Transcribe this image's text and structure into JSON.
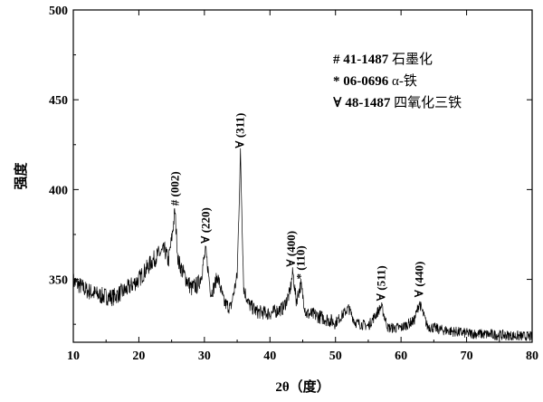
{
  "chart_data": {
    "type": "line",
    "xlabel": "2θ（度）",
    "ylabel": "强度",
    "xlim": [
      10,
      80
    ],
    "ylim": [
      315,
      500
    ],
    "xticks": [
      10,
      20,
      30,
      40,
      50,
      60,
      70,
      80
    ],
    "yticks": [
      350,
      400,
      450,
      500
    ],
    "grid": false,
    "legend_position": "top-right",
    "legend": [
      {
        "symbol": "#",
        "code": "41-1487",
        "phase": "石墨化"
      },
      {
        "symbol": "*",
        "code": "06-0696",
        "phase": "α-铁"
      },
      {
        "symbol": "∀",
        "code": "48-1487",
        "phase": "四氧化三铁"
      }
    ],
    "annotations": [
      {
        "marker": "#",
        "label": "(002)",
        "x": 25.5,
        "y": 388
      },
      {
        "marker": "∀",
        "label": "(220)",
        "x": 30.2,
        "y": 367
      },
      {
        "marker": "∀",
        "label": "(311)",
        "x": 35.5,
        "y": 420
      },
      {
        "marker": "∀",
        "label": "(400)",
        "x": 43.3,
        "y": 354
      },
      {
        "marker": "*",
        "label": "(110)",
        "x": 44.7,
        "y": 347
      },
      {
        "marker": "∀",
        "label": "(511)",
        "x": 57.0,
        "y": 335
      },
      {
        "marker": "∀",
        "label": "(440)",
        "x": 62.8,
        "y": 337
      }
    ],
    "series": [
      {
        "color": "#000000",
        "x": [
          10,
          12,
          14,
          16,
          18,
          20,
          21,
          22,
          23,
          24,
          24.5,
          25,
          25.5,
          26,
          27,
          28,
          29,
          29.5,
          30.2,
          31,
          31.5,
          32,
          33,
          34,
          35,
          35.5,
          36,
          36.8,
          38,
          40,
          42,
          43,
          43.5,
          44,
          44.7,
          45.5,
          47,
          50,
          52,
          53,
          55,
          57,
          58,
          60,
          62,
          62.8,
          64,
          66,
          70,
          75,
          80
        ],
        "y": [
          349,
          344,
          341,
          340,
          344,
          350,
          355,
          360,
          364,
          366,
          360,
          372,
          388,
          360,
          352,
          345,
          347,
          352,
          366,
          342,
          346,
          352,
          337,
          334,
          352,
          420,
          345,
          336,
          332,
          331,
          334,
          342,
          354,
          338,
          347,
          331,
          330,
          326,
          334,
          326,
          324,
          335,
          323,
          323,
          327,
          337,
          324,
          322,
          320,
          319,
          318
        ]
      }
    ]
  }
}
